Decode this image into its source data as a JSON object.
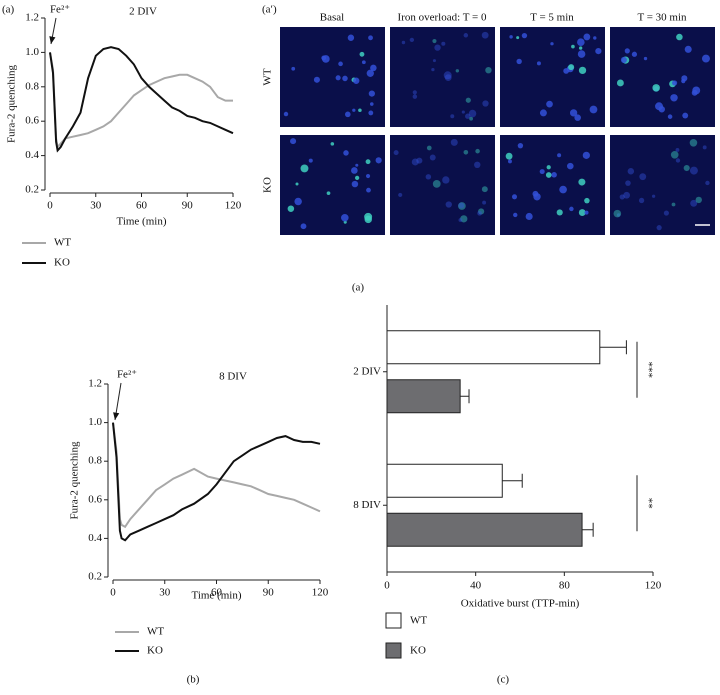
{
  "chart_data": [
    {
      "type": "line",
      "panel_label": "(a)",
      "title": "2 DIV",
      "annotation": "Fe²⁺",
      "xlabel": "Time (min)",
      "ylabel": "Fura-2 quenching",
      "xlim": [
        0,
        120
      ],
      "ylim": [
        0.2,
        1.2
      ],
      "xticks": [
        0,
        30,
        60,
        90,
        120
      ],
      "yticks": [
        0.2,
        0.4,
        0.6,
        0.8,
        {
          "value": 1,
          "label": "1.0"
        },
        1.2
      ],
      "x": [
        0,
        2,
        4,
        5,
        7,
        10,
        15,
        20,
        25,
        30,
        35,
        40,
        45,
        50,
        55,
        60,
        65,
        70,
        75,
        80,
        85,
        90,
        95,
        100,
        105,
        110,
        115,
        120
      ],
      "series": [
        {
          "name": "WT",
          "color": "#a8a8a8",
          "values": [
            1.0,
            0.9,
            0.5,
            0.45,
            0.47,
            0.5,
            0.51,
            0.52,
            0.53,
            0.55,
            0.57,
            0.6,
            0.65,
            0.7,
            0.75,
            0.78,
            0.81,
            0.83,
            0.85,
            0.86,
            0.87,
            0.87,
            0.85,
            0.83,
            0.8,
            0.74,
            0.72,
            0.72
          ]
        },
        {
          "name": "KO",
          "color": "#111111",
          "values": [
            1.0,
            0.88,
            0.48,
            0.43,
            0.45,
            0.5,
            0.57,
            0.65,
            0.85,
            0.98,
            1.02,
            1.03,
            1.02,
            0.98,
            0.93,
            0.85,
            0.8,
            0.76,
            0.72,
            0.68,
            0.66,
            0.63,
            0.62,
            0.6,
            0.59,
            0.57,
            0.55,
            0.53
          ]
        }
      ]
    },
    {
      "type": "line",
      "title": "8 DIV",
      "annotation": "Fe²⁺",
      "xlabel": "Time (min)",
      "ylabel": "Fura-2 quenching",
      "xlim": [
        0,
        120
      ],
      "ylim": [
        0.2,
        1.2
      ],
      "xticks": [
        0,
        30,
        60,
        90,
        120
      ],
      "yticks": [
        0.2,
        0.4,
        0.6,
        0.8,
        {
          "value": 1,
          "label": "1.0"
        },
        1.2
      ],
      "x": [
        0,
        2,
        4,
        5,
        7,
        10,
        15,
        20,
        25,
        30,
        35,
        40,
        47,
        55,
        60,
        65,
        70,
        75,
        80,
        85,
        90,
        95,
        100,
        105,
        110,
        115,
        120
      ],
      "series": [
        {
          "name": "WT",
          "color": "#a8a8a8",
          "values": [
            1.0,
            0.85,
            0.5,
            0.47,
            0.46,
            0.5,
            0.55,
            0.6,
            0.65,
            0.68,
            0.71,
            0.73,
            0.76,
            0.72,
            0.71,
            0.7,
            0.69,
            0.68,
            0.67,
            0.65,
            0.63,
            0.62,
            0.61,
            0.6,
            0.58,
            0.56,
            0.54
          ]
        },
        {
          "name": "KO",
          "color": "#111111",
          "values": [
            1.0,
            0.82,
            0.44,
            0.4,
            0.39,
            0.42,
            0.44,
            0.46,
            0.48,
            0.5,
            0.52,
            0.55,
            0.58,
            0.63,
            0.68,
            0.74,
            0.8,
            0.83,
            0.86,
            0.88,
            0.9,
            0.92,
            0.93,
            0.91,
            0.9,
            0.9,
            0.89
          ]
        }
      ]
    },
    {
      "type": "hbar",
      "xlabel": "Oxidative burst (TTP-min)",
      "xlim": [
        0,
        120
      ],
      "xticks": [
        0,
        40,
        80,
        120
      ],
      "categories": [
        "2 DIV",
        "8 DIV"
      ],
      "significance": [
        "***",
        "**"
      ],
      "series": [
        {
          "name": "WT",
          "color": "#ffffff",
          "values": [
            96,
            52
          ],
          "errors": [
            12,
            9
          ]
        },
        {
          "name": "KO",
          "color": "#6d6d70",
          "values": [
            33,
            88
          ],
          "errors": [
            4,
            5
          ]
        }
      ]
    }
  ],
  "image_panel": {
    "panel_label": "(a′)",
    "columns": [
      "Basal",
      "Iron overload: T = 0",
      "T = 5 min",
      "T = 30 min"
    ],
    "rows": [
      "WT",
      "KO"
    ]
  },
  "captions": [
    "(a)",
    "(b)",
    "(c)"
  ]
}
